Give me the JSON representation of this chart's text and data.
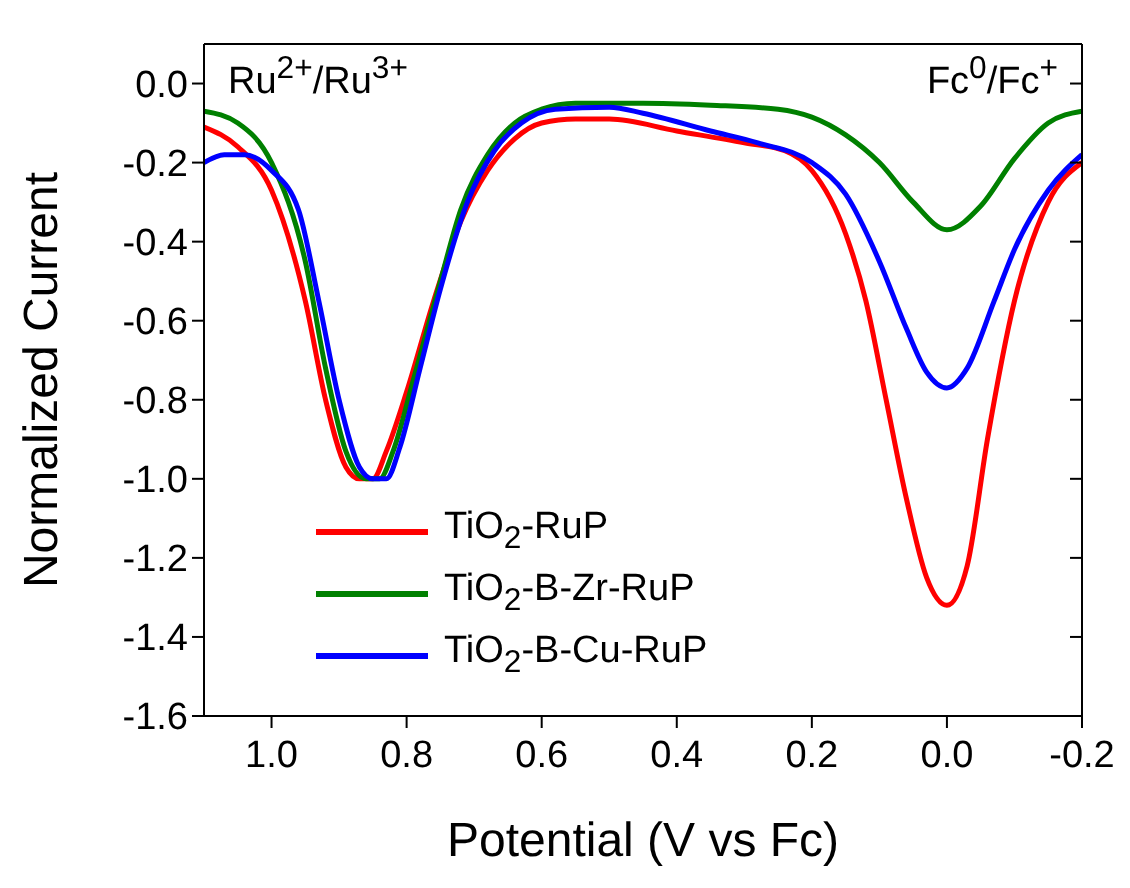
{
  "chart_data": {
    "type": "line",
    "xlabel": "Potential (V vs Fc)",
    "ylabel": "Normalized Current",
    "annotations": [
      "Ru$^{2+}$/Ru$^{3+}$",
      "Fc$^{0}$/Fc$^{+}$"
    ],
    "xlim": [
      1.1,
      -0.2
    ],
    "xticks": [
      {
        "value": 1,
        "label": "1.0"
      },
      0.8,
      0.6,
      0.4,
      0.2,
      {
        "value": 0,
        "label": "0.0"
      },
      -0.2
    ],
    "ylim": [
      -1.6,
      0.1
    ],
    "yticks": [
      {
        "value": 0,
        "label": "0.0"
      },
      -0.2,
      -0.4,
      -0.6,
      -0.8,
      {
        "value": -1,
        "label": "-1.0"
      },
      -1.2,
      -1.4,
      -1.6
    ],
    "legend": "bottom left",
    "grid": false,
    "marker": "none",
    "line_style": "solid",
    "series": [
      {
        "name": "TiO$_{2}$-RuP",
        "color": "#ff0000",
        "x": [
          1.1,
          1.05,
          1.0,
          0.95,
          0.92,
          0.89,
          0.87,
          0.85,
          0.83,
          0.8,
          0.76,
          0.72,
          0.68,
          0.64,
          0.6,
          0.55,
          0.5,
          0.4,
          0.3,
          0.24,
          0.2,
          0.15,
          0.12,
          0.09,
          0.06,
          0.03,
          0.0,
          -0.03,
          -0.06,
          -0.1,
          -0.15,
          -0.2
        ],
        "values": [
          -0.11,
          -0.16,
          -0.27,
          -0.55,
          -0.8,
          -0.97,
          -1.0,
          -1.0,
          -0.93,
          -0.78,
          -0.55,
          -0.35,
          -0.22,
          -0.14,
          -0.1,
          -0.09,
          -0.09,
          -0.12,
          -0.15,
          -0.17,
          -0.22,
          -0.38,
          -0.55,
          -0.8,
          -1.05,
          -1.25,
          -1.32,
          -1.22,
          -0.9,
          -0.55,
          -0.3,
          -0.2
        ]
      },
      {
        "name": "TiO$_{2}$-B-Zr-RuP",
        "color": "#008000",
        "x": [
          1.1,
          1.05,
          1.0,
          0.95,
          0.92,
          0.89,
          0.86,
          0.84,
          0.82,
          0.79,
          0.75,
          0.72,
          0.68,
          0.64,
          0.6,
          0.55,
          0.45,
          0.35,
          0.25,
          0.2,
          0.15,
          0.1,
          0.05,
          0.0,
          -0.05,
          -0.1,
          -0.15,
          -0.2
        ],
        "values": [
          -0.07,
          -0.1,
          -0.2,
          -0.45,
          -0.72,
          -0.93,
          -1.0,
          -1.0,
          -0.93,
          -0.75,
          -0.5,
          -0.32,
          -0.18,
          -0.1,
          -0.065,
          -0.05,
          -0.05,
          -0.055,
          -0.065,
          -0.085,
          -0.13,
          -0.2,
          -0.3,
          -0.37,
          -0.31,
          -0.19,
          -0.1,
          -0.07
        ]
      },
      {
        "name": "TiO$_{2}$-B-Cu-RuP",
        "color": "#0000ff",
        "x": [
          1.1,
          1.07,
          1.04,
          1.0,
          0.96,
          0.93,
          0.9,
          0.87,
          0.85,
          0.83,
          0.81,
          0.78,
          0.75,
          0.71,
          0.67,
          0.63,
          0.58,
          0.5,
          0.45,
          0.35,
          0.28,
          0.2,
          0.15,
          0.1,
          0.06,
          0.03,
          0.0,
          -0.03,
          -0.07,
          -0.1,
          -0.15,
          -0.2
        ],
        "values": [
          -0.2,
          -0.18,
          -0.18,
          -0.22,
          -0.32,
          -0.55,
          -0.8,
          -0.97,
          -1.0,
          -1.0,
          -0.92,
          -0.72,
          -0.52,
          -0.3,
          -0.17,
          -0.1,
          -0.065,
          -0.06,
          -0.075,
          -0.12,
          -0.15,
          -0.2,
          -0.28,
          -0.45,
          -0.62,
          -0.73,
          -0.77,
          -0.72,
          -0.55,
          -0.42,
          -0.27,
          -0.18
        ]
      }
    ]
  }
}
